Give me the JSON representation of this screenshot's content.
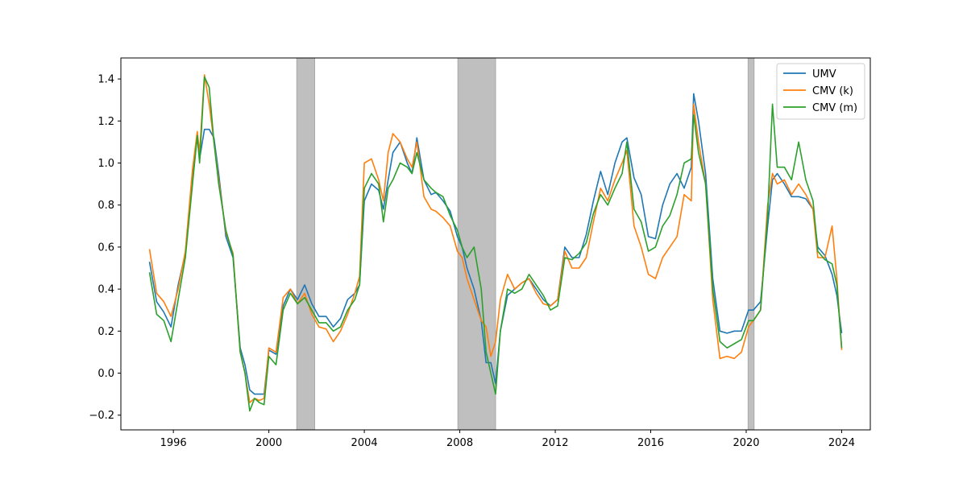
{
  "chart_data": {
    "type": "line",
    "title": "",
    "xlabel": "",
    "ylabel": "",
    "xlim": [
      1993.8,
      2025.2
    ],
    "ylim": [
      -0.27,
      1.5
    ],
    "x_ticks": [
      1996,
      2000,
      2004,
      2008,
      2012,
      2016,
      2020,
      2024
    ],
    "y_ticks": [
      -0.2,
      0.0,
      0.2,
      0.4,
      0.6,
      0.8,
      1.0,
      1.2,
      1.4
    ],
    "grid": false,
    "legend_position": "top-right",
    "recession_shading": [
      [
        2001.17,
        2001.92
      ],
      [
        2007.92,
        2009.5
      ],
      [
        2020.08,
        2020.33
      ]
    ],
    "shading_color": "#bfbfbf",
    "series": [
      {
        "name": "UMV",
        "color": "#1f77b4",
        "x": [
          1995.0,
          1995.3,
          1995.6,
          1995.9,
          1996.2,
          1996.5,
          1996.8,
          1997.0,
          1997.1,
          1997.3,
          1997.5,
          1997.7,
          1997.9,
          1998.2,
          1998.5,
          1998.8,
          1999.0,
          1999.2,
          1999.4,
          1999.6,
          1999.8,
          2000.0,
          2000.3,
          2000.6,
          2000.9,
          2001.2,
          2001.5,
          2001.8,
          2002.1,
          2002.4,
          2002.7,
          2003.0,
          2003.3,
          2003.6,
          2003.8,
          2004.0,
          2004.3,
          2004.6,
          2004.8,
          2005.0,
          2005.2,
          2005.5,
          2005.8,
          2006.0,
          2006.2,
          2006.5,
          2006.8,
          2007.0,
          2007.3,
          2007.6,
          2007.9,
          2008.1,
          2008.3,
          2008.6,
          2008.9,
          2009.1,
          2009.3,
          2009.5,
          2009.7,
          2010.0,
          2010.3,
          2010.6,
          2010.9,
          2011.2,
          2011.5,
          2011.8,
          2012.1,
          2012.4,
          2012.7,
          2013.0,
          2013.3,
          2013.6,
          2013.9,
          2014.2,
          2014.5,
          2014.8,
          2015.0,
          2015.3,
          2015.6,
          2015.9,
          2016.2,
          2016.5,
          2016.8,
          2017.1,
          2017.4,
          2017.7,
          2017.8,
          2018.0,
          2018.3,
          2018.6,
          2018.9,
          2019.2,
          2019.5,
          2019.8,
          2020.1,
          2020.3,
          2020.6,
          2020.9,
          2021.1,
          2021.3,
          2021.6,
          2021.9,
          2022.2,
          2022.5,
          2022.8,
          2023.0,
          2023.3,
          2023.6,
          2023.8,
          2024.0
        ],
        "y": [
          0.53,
          0.34,
          0.29,
          0.22,
          0.42,
          0.57,
          0.95,
          1.12,
          1.02,
          1.16,
          1.16,
          1.12,
          0.95,
          0.65,
          0.55,
          0.12,
          0.04,
          -0.08,
          -0.1,
          -0.1,
          -0.1,
          0.11,
          0.09,
          0.32,
          0.4,
          0.35,
          0.42,
          0.33,
          0.27,
          0.27,
          0.22,
          0.26,
          0.35,
          0.38,
          0.42,
          0.82,
          0.9,
          0.87,
          0.78,
          0.92,
          1.05,
          1.1,
          1.0,
          0.95,
          1.12,
          0.92,
          0.85,
          0.86,
          0.82,
          0.77,
          0.65,
          0.6,
          0.5,
          0.4,
          0.25,
          0.05,
          0.05,
          -0.05,
          0.2,
          0.37,
          0.4,
          0.43,
          0.45,
          0.4,
          0.35,
          0.32,
          0.35,
          0.6,
          0.55,
          0.55,
          0.66,
          0.82,
          0.96,
          0.85,
          1.0,
          1.1,
          1.12,
          0.93,
          0.85,
          0.65,
          0.64,
          0.8,
          0.9,
          0.95,
          0.88,
          0.98,
          1.33,
          1.2,
          0.95,
          0.45,
          0.2,
          0.19,
          0.2,
          0.2,
          0.3,
          0.3,
          0.34,
          0.7,
          0.92,
          0.95,
          0.9,
          0.84,
          0.84,
          0.83,
          0.78,
          0.6,
          0.56,
          0.47,
          0.37,
          0.19
        ]
      },
      {
        "name": "CMV (k)",
        "color": "#ff7f0e",
        "x": [
          1995.0,
          1995.3,
          1995.6,
          1995.9,
          1996.2,
          1996.5,
          1996.8,
          1997.0,
          1997.1,
          1997.3,
          1997.5,
          1997.7,
          1997.9,
          1998.2,
          1998.5,
          1998.8,
          1999.0,
          1999.2,
          1999.4,
          1999.6,
          1999.8,
          2000.0,
          2000.3,
          2000.6,
          2000.9,
          2001.2,
          2001.5,
          2001.8,
          2002.1,
          2002.4,
          2002.7,
          2003.0,
          2003.3,
          2003.6,
          2003.8,
          2004.0,
          2004.3,
          2004.6,
          2004.8,
          2005.0,
          2005.2,
          2005.5,
          2005.8,
          2006.0,
          2006.2,
          2006.5,
          2006.8,
          2007.0,
          2007.3,
          2007.6,
          2007.9,
          2008.1,
          2008.3,
          2008.6,
          2008.9,
          2009.1,
          2009.3,
          2009.5,
          2009.7,
          2010.0,
          2010.3,
          2010.6,
          2010.9,
          2011.2,
          2011.5,
          2011.8,
          2012.1,
          2012.4,
          2012.7,
          2013.0,
          2013.3,
          2013.6,
          2013.9,
          2014.2,
          2014.5,
          2014.8,
          2015.0,
          2015.3,
          2015.6,
          2015.9,
          2016.2,
          2016.5,
          2016.8,
          2017.1,
          2017.4,
          2017.7,
          2017.8,
          2018.0,
          2018.3,
          2018.6,
          2018.9,
          2019.2,
          2019.5,
          2019.8,
          2020.1,
          2020.3,
          2020.6,
          2020.9,
          2021.1,
          2021.3,
          2021.6,
          2021.9,
          2022.2,
          2022.5,
          2022.8,
          2023.0,
          2023.3,
          2023.6,
          2023.8,
          2024.0
        ],
        "y": [
          0.59,
          0.38,
          0.34,
          0.27,
          0.4,
          0.58,
          0.97,
          1.15,
          1.05,
          1.42,
          1.28,
          1.1,
          0.92,
          0.67,
          0.57,
          0.1,
          0.0,
          -0.14,
          -0.12,
          -0.13,
          -0.12,
          0.12,
          0.1,
          0.36,
          0.4,
          0.33,
          0.38,
          0.28,
          0.22,
          0.21,
          0.15,
          0.2,
          0.28,
          0.38,
          0.46,
          1.0,
          1.02,
          0.92,
          0.82,
          1.05,
          1.14,
          1.1,
          1.02,
          0.98,
          1.1,
          0.84,
          0.78,
          0.77,
          0.74,
          0.7,
          0.58,
          0.55,
          0.45,
          0.35,
          0.25,
          0.22,
          0.08,
          0.15,
          0.35,
          0.47,
          0.4,
          0.43,
          0.45,
          0.38,
          0.33,
          0.32,
          0.35,
          0.58,
          0.5,
          0.5,
          0.55,
          0.72,
          0.88,
          0.82,
          0.92,
          1.0,
          1.06,
          0.7,
          0.6,
          0.47,
          0.45,
          0.55,
          0.6,
          0.65,
          0.85,
          0.82,
          1.28,
          1.1,
          0.9,
          0.35,
          0.07,
          0.08,
          0.07,
          0.1,
          0.22,
          0.25,
          0.3,
          0.8,
          0.95,
          0.9,
          0.92,
          0.85,
          0.9,
          0.85,
          0.78,
          0.55,
          0.55,
          0.7,
          0.45,
          0.11
        ]
      },
      {
        "name": "CMV (m)",
        "color": "#2ca02c",
        "x": [
          1995.0,
          1995.3,
          1995.6,
          1995.9,
          1996.2,
          1996.5,
          1996.8,
          1997.0,
          1997.1,
          1997.3,
          1997.5,
          1997.7,
          1997.9,
          1998.2,
          1998.5,
          1998.8,
          1999.0,
          1999.2,
          1999.4,
          1999.6,
          1999.8,
          2000.0,
          2000.3,
          2000.6,
          2000.9,
          2001.2,
          2001.5,
          2001.8,
          2002.1,
          2002.4,
          2002.7,
          2003.0,
          2003.3,
          2003.6,
          2003.8,
          2004.0,
          2004.3,
          2004.6,
          2004.8,
          2005.0,
          2005.2,
          2005.5,
          2005.8,
          2006.0,
          2006.2,
          2006.5,
          2006.8,
          2007.0,
          2007.3,
          2007.6,
          2007.9,
          2008.1,
          2008.3,
          2008.6,
          2008.9,
          2009.1,
          2009.3,
          2009.5,
          2009.7,
          2010.0,
          2010.3,
          2010.6,
          2010.9,
          2011.2,
          2011.5,
          2011.8,
          2012.1,
          2012.4,
          2012.7,
          2013.0,
          2013.3,
          2013.6,
          2013.9,
          2014.2,
          2014.5,
          2014.8,
          2015.0,
          2015.3,
          2015.6,
          2015.9,
          2016.2,
          2016.5,
          2016.8,
          2017.1,
          2017.4,
          2017.7,
          2017.8,
          2018.0,
          2018.3,
          2018.6,
          2018.9,
          2019.2,
          2019.5,
          2019.8,
          2020.1,
          2020.3,
          2020.6,
          2020.9,
          2021.1,
          2021.3,
          2021.6,
          2021.9,
          2022.2,
          2022.5,
          2022.8,
          2023.0,
          2023.3,
          2023.6,
          2023.8,
          2024.0
        ],
        "y": [
          0.48,
          0.28,
          0.25,
          0.15,
          0.35,
          0.55,
          0.9,
          1.13,
          1.0,
          1.41,
          1.36,
          1.1,
          0.9,
          0.68,
          0.56,
          0.1,
          0.0,
          -0.18,
          -0.12,
          -0.14,
          -0.15,
          0.08,
          0.04,
          0.3,
          0.38,
          0.33,
          0.36,
          0.3,
          0.24,
          0.24,
          0.2,
          0.22,
          0.3,
          0.35,
          0.42,
          0.88,
          0.95,
          0.9,
          0.72,
          0.88,
          0.92,
          1.0,
          0.98,
          0.95,
          1.05,
          0.92,
          0.88,
          0.86,
          0.84,
          0.75,
          0.68,
          0.6,
          0.55,
          0.6,
          0.4,
          0.1,
          0.0,
          -0.1,
          0.2,
          0.4,
          0.38,
          0.4,
          0.47,
          0.42,
          0.37,
          0.3,
          0.32,
          0.55,
          0.54,
          0.57,
          0.62,
          0.76,
          0.85,
          0.8,
          0.88,
          0.95,
          1.1,
          0.78,
          0.72,
          0.58,
          0.6,
          0.7,
          0.75,
          0.85,
          1.0,
          1.02,
          1.23,
          1.05,
          0.9,
          0.4,
          0.15,
          0.12,
          0.14,
          0.16,
          0.25,
          0.25,
          0.3,
          0.75,
          1.28,
          0.98,
          0.98,
          0.92,
          1.1,
          0.92,
          0.82,
          0.58,
          0.54,
          0.52,
          0.42,
          0.12
        ]
      }
    ]
  }
}
